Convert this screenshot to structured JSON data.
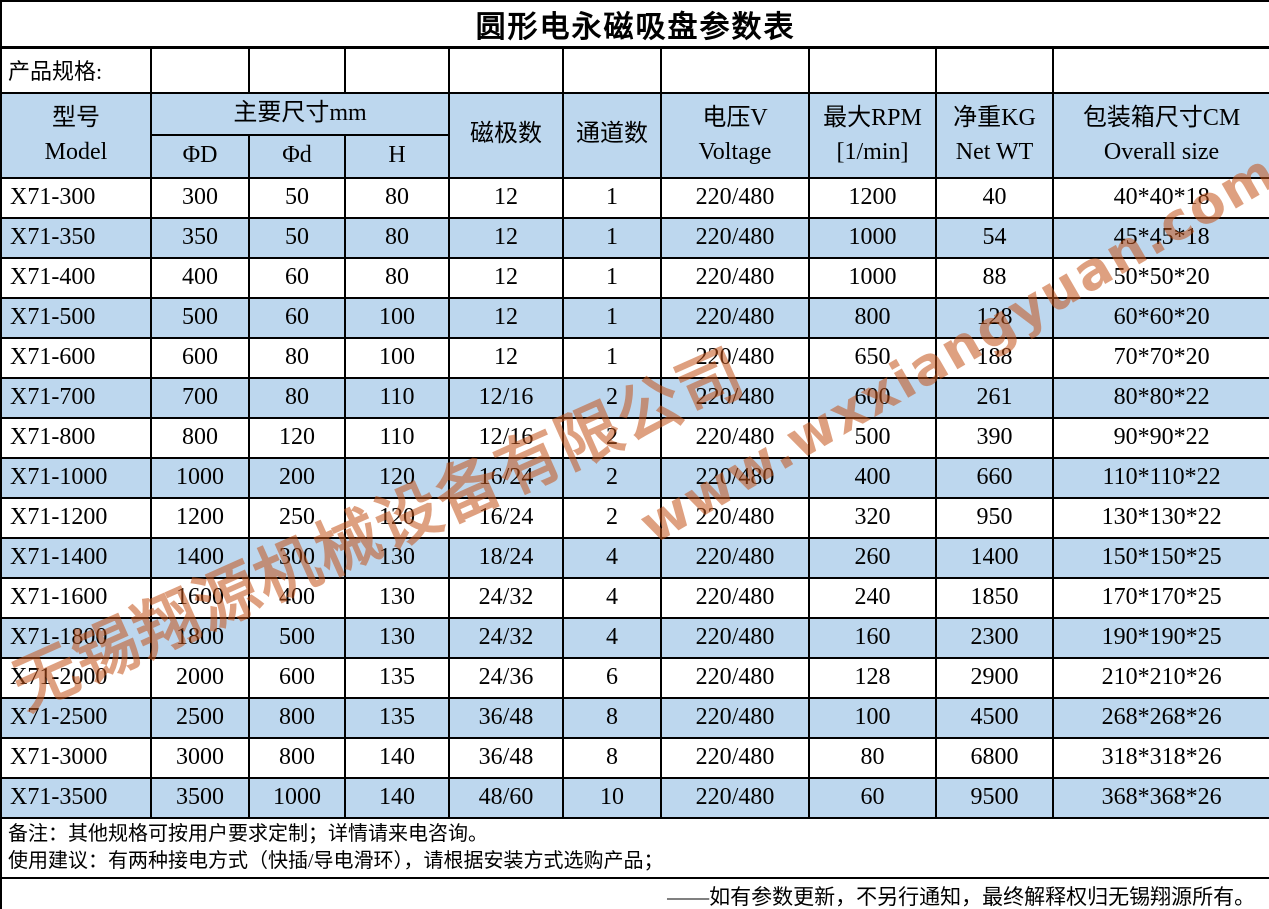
{
  "colors": {
    "band": "#bdd7ee",
    "border": "#000000",
    "watermark": "#c4541a"
  },
  "title": "圆形电永磁吸盘参数表",
  "spec_label": "产品规格:",
  "header": {
    "model": {
      "zh": "型号",
      "en": "Model"
    },
    "dims_group": "主要尺寸mm",
    "dims": [
      "ΦD",
      "Φd",
      "H"
    ],
    "poles": "磁极数",
    "channels": "通道数",
    "voltage": {
      "zh": "电压V",
      "en": "Voltage"
    },
    "rpm": {
      "zh": "最大RPM",
      "en": "[1/min]"
    },
    "weight": {
      "zh": "净重KG",
      "en": "Net WT"
    },
    "box": {
      "zh": "包装箱尺寸CM",
      "en": "Overall size"
    }
  },
  "rows": [
    [
      "X71-300",
      "300",
      "50",
      "80",
      "12",
      "1",
      "220/480",
      "1200",
      "40",
      "40*40*18"
    ],
    [
      "X71-350",
      "350",
      "50",
      "80",
      "12",
      "1",
      "220/480",
      "1000",
      "54",
      "45*45*18"
    ],
    [
      "X71-400",
      "400",
      "60",
      "80",
      "12",
      "1",
      "220/480",
      "1000",
      "88",
      "50*50*20"
    ],
    [
      "X71-500",
      "500",
      "60",
      "100",
      "12",
      "1",
      "220/480",
      "800",
      "128",
      "60*60*20"
    ],
    [
      "X71-600",
      "600",
      "80",
      "100",
      "12",
      "1",
      "220/480",
      "650",
      "188",
      "70*70*20"
    ],
    [
      "X71-700",
      "700",
      "80",
      "110",
      "12/16",
      "2",
      "220/480",
      "600",
      "261",
      "80*80*22"
    ],
    [
      "X71-800",
      "800",
      "120",
      "110",
      "12/16",
      "2",
      "220/480",
      "500",
      "390",
      "90*90*22"
    ],
    [
      "X71-1000",
      "1000",
      "200",
      "120",
      "16/24",
      "2",
      "220/480",
      "400",
      "660",
      "110*110*22"
    ],
    [
      "X71-1200",
      "1200",
      "250",
      "120",
      "16/24",
      "2",
      "220/480",
      "320",
      "950",
      "130*130*22"
    ],
    [
      "X71-1400",
      "1400",
      "300",
      "130",
      "18/24",
      "4",
      "220/480",
      "260",
      "1400",
      "150*150*25"
    ],
    [
      "X71-1600",
      "1600",
      "400",
      "130",
      "24/32",
      "4",
      "220/480",
      "240",
      "1850",
      "170*170*25"
    ],
    [
      "X71-1800",
      "1800",
      "500",
      "130",
      "24/32",
      "4",
      "220/480",
      "160",
      "2300",
      "190*190*25"
    ],
    [
      "X71-2000",
      "2000",
      "600",
      "135",
      "24/36",
      "6",
      "220/480",
      "128",
      "2900",
      "210*210*26"
    ],
    [
      "X71-2500",
      "2500",
      "800",
      "135",
      "36/48",
      "8",
      "220/480",
      "100",
      "4500",
      "268*268*26"
    ],
    [
      "X71-3000",
      "3000",
      "800",
      "140",
      "36/48",
      "8",
      "220/480",
      "80",
      "6800",
      "318*318*26"
    ],
    [
      "X71-3500",
      "3500",
      "1000",
      "140",
      "48/60",
      "10",
      "220/480",
      "60",
      "9500",
      "368*368*26"
    ]
  ],
  "notes": {
    "line1": "备注：其他规格可按用户要求定制；详情请来电咨询。",
    "line2": "使用建议：有两种接电方式（快插/导电滑环），请根据安装方式选购产品；"
  },
  "footer_note": "——如有参数更新，不另行通知，最终解释权归无锡翔源所有。",
  "watermark": {
    "company": "无锡翔源机械设备有限公司",
    "url": "www.wxxiangyuan.com"
  }
}
